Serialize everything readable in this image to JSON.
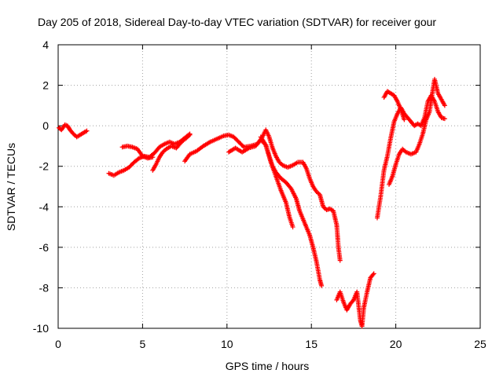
{
  "chart_data": {
    "type": "scatter",
    "title": "Day 205 of 2018, Sidereal Day-to-day VTEC variation (SDTVAR) for receiver gour",
    "xlabel": "GPS time / hours",
    "ylabel": "SDTVAR / TECUs",
    "xlim": [
      0,
      25
    ],
    "ylim": [
      -10,
      4
    ],
    "x_ticks": [
      0,
      5,
      10,
      15,
      20,
      25
    ],
    "y_ticks": [
      -10,
      -8,
      -6,
      -4,
      -2,
      0,
      2,
      4
    ],
    "x_tick_labels": [
      "0",
      "5",
      "10",
      "15",
      "20",
      "25"
    ],
    "y_tick_labels": [
      "-10",
      "-8",
      "-6",
      "-4",
      "-2",
      "0",
      "2",
      "4"
    ],
    "grid": true,
    "marker": "+",
    "color": "#ff0000",
    "traces": [
      {
        "points": [
          [
            0.05,
            -0.1
          ],
          [
            0.2,
            -0.2
          ],
          [
            0.4,
            0.05
          ],
          [
            0.55,
            0.0
          ],
          [
            0.7,
            -0.2
          ],
          [
            0.9,
            -0.4
          ],
          [
            1.1,
            -0.55
          ],
          [
            1.3,
            -0.45
          ],
          [
            1.5,
            -0.35
          ],
          [
            1.7,
            -0.25
          ]
        ]
      },
      {
        "points": [
          [
            3.0,
            -2.35
          ],
          [
            3.3,
            -2.45
          ],
          [
            3.6,
            -2.3
          ],
          [
            3.9,
            -2.2
          ],
          [
            4.2,
            -2.05
          ],
          [
            4.5,
            -1.8
          ],
          [
            4.8,
            -1.6
          ],
          [
            5.1,
            -1.5
          ],
          [
            5.4,
            -1.55
          ],
          [
            5.7,
            -1.35
          ],
          [
            6.0,
            -1.05
          ],
          [
            6.3,
            -0.9
          ],
          [
            6.6,
            -0.8
          ],
          [
            6.9,
            -0.9
          ],
          [
            7.2,
            -0.8
          ],
          [
            7.5,
            -0.6
          ],
          [
            7.8,
            -0.4
          ]
        ]
      },
      {
        "points": [
          [
            3.8,
            -1.05
          ],
          [
            4.1,
            -1.0
          ],
          [
            4.4,
            -1.05
          ],
          [
            4.7,
            -1.15
          ],
          [
            5.0,
            -1.5
          ],
          [
            5.3,
            -1.6
          ],
          [
            5.6,
            -1.55
          ]
        ]
      },
      {
        "points": [
          [
            5.6,
            -2.2
          ],
          [
            5.8,
            -1.9
          ],
          [
            6.0,
            -1.55
          ],
          [
            6.2,
            -1.3
          ],
          [
            6.4,
            -1.15
          ],
          [
            6.7,
            -1.0
          ],
          [
            7.0,
            -1.1
          ],
          [
            7.3,
            -0.8
          ],
          [
            7.6,
            -0.6
          ],
          [
            7.8,
            -0.45
          ]
        ]
      },
      {
        "points": [
          [
            7.5,
            -1.75
          ],
          [
            7.8,
            -1.4
          ],
          [
            8.2,
            -1.25
          ],
          [
            8.6,
            -1.0
          ],
          [
            9.0,
            -0.8
          ],
          [
            9.4,
            -0.65
          ],
          [
            9.8,
            -0.5
          ],
          [
            10.1,
            -0.45
          ],
          [
            10.4,
            -0.55
          ],
          [
            10.7,
            -0.8
          ],
          [
            11.0,
            -1.05
          ],
          [
            11.4,
            -1.0
          ],
          [
            11.8,
            -0.9
          ],
          [
            12.1,
            -0.55
          ],
          [
            12.3,
            -0.2
          ],
          [
            12.5,
            -0.55
          ],
          [
            12.7,
            -1.1
          ],
          [
            12.9,
            -1.5
          ],
          [
            13.1,
            -1.8
          ],
          [
            13.3,
            -1.95
          ],
          [
            13.6,
            -2.05
          ],
          [
            13.9,
            -1.95
          ],
          [
            14.2,
            -1.8
          ],
          [
            14.5,
            -1.8
          ],
          [
            14.7,
            -2.1
          ],
          [
            14.9,
            -2.6
          ],
          [
            15.1,
            -3.0
          ],
          [
            15.3,
            -3.25
          ],
          [
            15.5,
            -3.4
          ],
          [
            15.7,
            -4.0
          ],
          [
            15.9,
            -4.15
          ],
          [
            16.1,
            -4.1
          ],
          [
            16.3,
            -4.2
          ],
          [
            16.5,
            -4.9
          ],
          [
            16.6,
            -6.0
          ],
          [
            16.7,
            -6.65
          ]
        ]
      },
      {
        "points": [
          [
            10.1,
            -1.3
          ],
          [
            10.5,
            -1.1
          ],
          [
            10.9,
            -1.3
          ],
          [
            11.3,
            -1.1
          ],
          [
            11.7,
            -1.0
          ],
          [
            12.0,
            -0.7
          ],
          [
            12.3,
            -0.95
          ],
          [
            12.5,
            -1.5
          ],
          [
            12.7,
            -2.0
          ],
          [
            12.9,
            -2.3
          ],
          [
            13.2,
            -2.6
          ],
          [
            13.5,
            -2.8
          ],
          [
            13.8,
            -3.1
          ],
          [
            14.1,
            -3.6
          ],
          [
            14.3,
            -4.2
          ],
          [
            14.6,
            -4.8
          ],
          [
            14.9,
            -5.4
          ],
          [
            15.1,
            -6.0
          ],
          [
            15.3,
            -6.7
          ],
          [
            15.5,
            -7.6
          ],
          [
            15.6,
            -7.9
          ]
        ]
      },
      {
        "points": [
          [
            12.0,
            -0.55
          ],
          [
            12.3,
            -0.95
          ],
          [
            12.6,
            -1.8
          ],
          [
            12.9,
            -2.5
          ],
          [
            13.2,
            -3.2
          ],
          [
            13.5,
            -3.8
          ],
          [
            13.7,
            -4.5
          ],
          [
            13.9,
            -5.0
          ]
        ]
      },
      {
        "points": [
          [
            16.5,
            -8.6
          ],
          [
            16.7,
            -8.2
          ],
          [
            16.9,
            -8.7
          ],
          [
            17.1,
            -9.1
          ],
          [
            17.3,
            -8.8
          ],
          [
            17.5,
            -8.6
          ],
          [
            17.7,
            -8.2
          ],
          [
            17.9,
            -9.6
          ],
          [
            18.0,
            -9.9
          ],
          [
            18.1,
            -9.0
          ],
          [
            18.3,
            -8.2
          ],
          [
            18.5,
            -7.5
          ],
          [
            18.7,
            -7.3
          ]
        ]
      },
      {
        "points": [
          [
            18.9,
            -4.55
          ],
          [
            19.1,
            -3.5
          ],
          [
            19.3,
            -2.2
          ],
          [
            19.5,
            -1.5
          ],
          [
            19.7,
            -0.6
          ],
          [
            19.9,
            0.2
          ],
          [
            20.1,
            0.6
          ],
          [
            20.3,
            0.9
          ],
          [
            20.5,
            0.6
          ],
          [
            20.7,
            0.4
          ],
          [
            20.9,
            0.2
          ],
          [
            21.1,
            0.0
          ],
          [
            21.3,
            0.1
          ],
          [
            21.5,
            0.0
          ],
          [
            21.7,
            0.4
          ],
          [
            21.9,
            1.2
          ],
          [
            22.1,
            1.5
          ],
          [
            22.3,
            1.2
          ],
          [
            22.5,
            0.7
          ],
          [
            22.7,
            0.4
          ],
          [
            22.9,
            0.35
          ]
        ]
      },
      {
        "points": [
          [
            19.3,
            1.4
          ],
          [
            19.5,
            1.7
          ],
          [
            19.7,
            1.6
          ],
          [
            19.9,
            1.5
          ],
          [
            20.1,
            1.2
          ],
          [
            20.3,
            0.8
          ],
          [
            20.5,
            0.3
          ]
        ]
      },
      {
        "points": [
          [
            19.6,
            -2.9
          ],
          [
            19.8,
            -2.5
          ],
          [
            20.0,
            -1.9
          ],
          [
            20.2,
            -1.4
          ],
          [
            20.4,
            -1.15
          ],
          [
            20.6,
            -1.3
          ],
          [
            20.9,
            -1.4
          ],
          [
            21.2,
            -1.3
          ],
          [
            21.4,
            -0.9
          ],
          [
            21.6,
            -0.4
          ],
          [
            21.8,
            0.3
          ],
          [
            22.0,
            0.7
          ],
          [
            22.2,
            1.8
          ],
          [
            22.3,
            2.3
          ],
          [
            22.5,
            1.6
          ],
          [
            22.7,
            1.3
          ],
          [
            22.9,
            1.0
          ]
        ]
      }
    ]
  }
}
